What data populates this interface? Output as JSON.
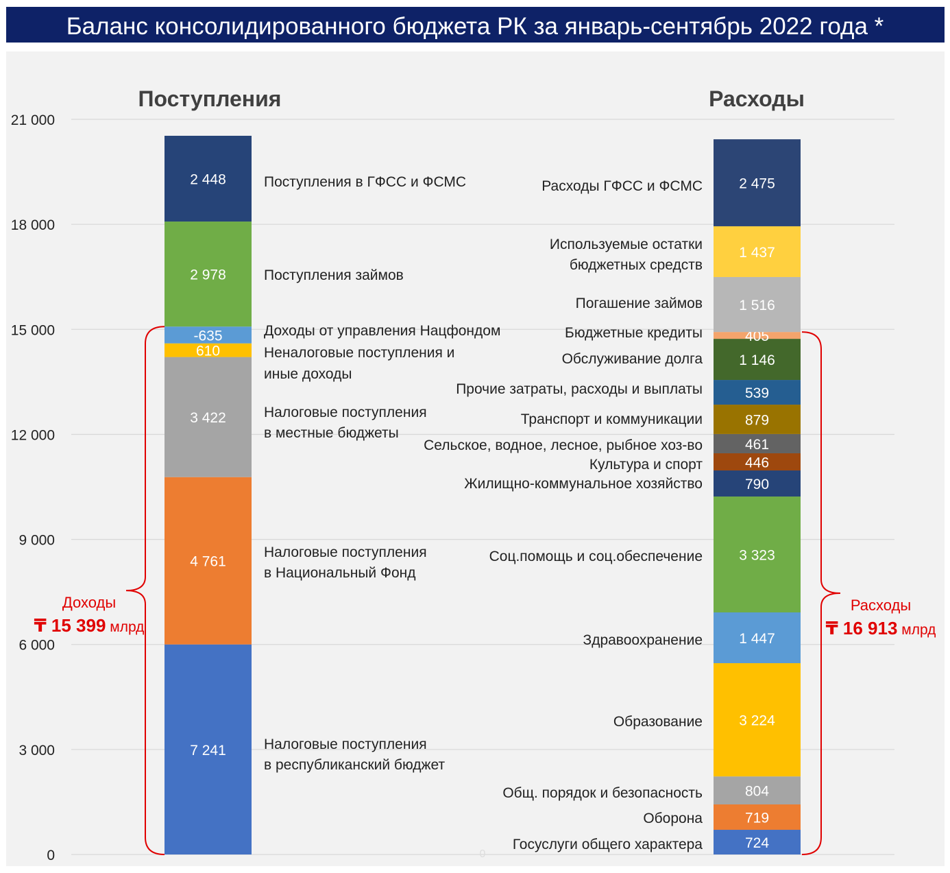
{
  "title": "Баланс консолидированного бюджета РК за январь-сентябрь 2022 года *",
  "stray_zero": "0",
  "chart_data": {
    "type": "bar",
    "stacked": true,
    "ylim": [
      0,
      21000
    ],
    "yticks": [
      0,
      3000,
      6000,
      9000,
      12000,
      15000,
      18000,
      21000
    ],
    "ytick_labels": [
      "0",
      "3 000",
      "6 000",
      "9 000",
      "12 000",
      "15 000",
      "18 000",
      "21 000"
    ],
    "grid": true,
    "columns": [
      {
        "title": "Поступления",
        "segments": [
          {
            "label": [
              "Налоговые поступления",
              "в республиканский бюджет"
            ],
            "value": 7241,
            "value_label": "7 241",
            "from": 0,
            "to": 6000,
            "color": "#4472C4"
          },
          {
            "label": [
              "Налоговые поступления",
              "в Национальный Фонд"
            ],
            "value": 4761,
            "value_label": "4 761",
            "from": 6000,
            "to": 10780,
            "color": "#ED7D31"
          },
          {
            "label": [
              "Налоговые поступления",
              "в местные бюджеты"
            ],
            "value": 3422,
            "value_label": "3 422",
            "from": 10780,
            "to": 14210,
            "color": "#A5A5A5"
          },
          {
            "label": [
              "Неналоговые поступления и",
              "иные доходы"
            ],
            "value": 610,
            "value_label": "610",
            "from": 14210,
            "to": 14600,
            "color": "#FFC000"
          },
          {
            "label": [
              "Доходы от управления Нацфондом"
            ],
            "value": -635,
            "value_label": "-635",
            "from": 14600,
            "to": 15080,
            "color": "#5B9BD5"
          },
          {
            "label": [
              "Поступления займов"
            ],
            "value": 2978,
            "value_label": "2 978",
            "from": 15080,
            "to": 18080,
            "color": "#70AD47"
          },
          {
            "label": [
              "Поступления в ГФСС и ФСМС"
            ],
            "value": 2448,
            "value_label": "2 448",
            "from": 18080,
            "to": 20530,
            "color": "#264478"
          }
        ],
        "brace": {
          "from": 0,
          "to": 15080,
          "title": "Доходы",
          "currency": "₸",
          "amount": "15 399",
          "unit": "млрд"
        }
      },
      {
        "title": "Расходы",
        "segments": [
          {
            "label": [
              "Госуслуги общего характера"
            ],
            "value": 724,
            "value_label": "724",
            "from": 0,
            "to": 705,
            "color": "#4472C4"
          },
          {
            "label": [
              "Оборона"
            ],
            "value": 719,
            "value_label": "719",
            "from": 705,
            "to": 1430,
            "color": "#ED7D31"
          },
          {
            "label": [
              "Общ. порядок и безопасность"
            ],
            "value": 804,
            "value_label": "804",
            "from": 1430,
            "to": 2230,
            "color": "#A5A5A5"
          },
          {
            "label": [
              "Образование"
            ],
            "value": 3224,
            "value_label": "3 224",
            "from": 2230,
            "to": 5465,
            "color": "#FFC000"
          },
          {
            "label": [
              "Здравоохранение"
            ],
            "value": 1447,
            "value_label": "1 447",
            "from": 5465,
            "to": 6915,
            "color": "#5B9BD5"
          },
          {
            "label": [
              "Соц.помощь и соц.обеспечение"
            ],
            "value": 3323,
            "value_label": "3 323",
            "from": 6915,
            "to": 10225,
            "color": "#70AD47"
          },
          {
            "label": [
              "Жилищно-коммунальное хозяйство"
            ],
            "value": 790,
            "value_label": "790",
            "from": 10225,
            "to": 10970,
            "color": "#264478"
          },
          {
            "label": [
              "Культура и спорт"
            ],
            "value": 446,
            "value_label": "446",
            "from": 10970,
            "to": 11460,
            "color": "#9E480E"
          },
          {
            "label": [
              "Сельское, водное, лесное, рыбное хоз-во"
            ],
            "value": 461,
            "value_label": "461",
            "from": 11460,
            "to": 12010,
            "color": "#636363"
          },
          {
            "label": [
              "Транспорт и коммуникации"
            ],
            "value": 879,
            "value_label": "879",
            "from": 12010,
            "to": 12850,
            "color": "#997300"
          },
          {
            "label": [
              "Прочие затраты, расходы и выплаты"
            ],
            "value": 539,
            "value_label": "539",
            "from": 12850,
            "to": 13555,
            "color": "#255E91"
          },
          {
            "label": [
              "Обслуживание долга"
            ],
            "value": 1146,
            "value_label": "1 146",
            "from": 13555,
            "to": 14730,
            "color": "#43682B"
          },
          {
            "label": [
              "Бюджетные кредиты"
            ],
            "value": 405,
            "value_label": "405",
            "from": 14730,
            "to": 14925,
            "color": "#F4A46C"
          },
          {
            "label": [
              "Погашение займов"
            ],
            "value": 1516,
            "value_label": "1 516",
            "from": 14925,
            "to": 16495,
            "color": "#B7B7B7"
          },
          {
            "label": [
              "Используемые остатки",
              "бюджетных средств"
            ],
            "value": 1437,
            "value_label": "1 437",
            "from": 16495,
            "to": 17945,
            "color": "#FFD03F"
          },
          {
            "label": [
              "Расходы ГФСС и ФСМС"
            ],
            "value": 2475,
            "value_label": "2 475",
            "from": 17945,
            "to": 20430,
            "color": "#2C4575"
          }
        ],
        "brace": {
          "from": 0,
          "to": 14925,
          "title": "Расходы",
          "currency": "₸",
          "amount": "16 913",
          "unit": "млрд"
        }
      }
    ]
  }
}
